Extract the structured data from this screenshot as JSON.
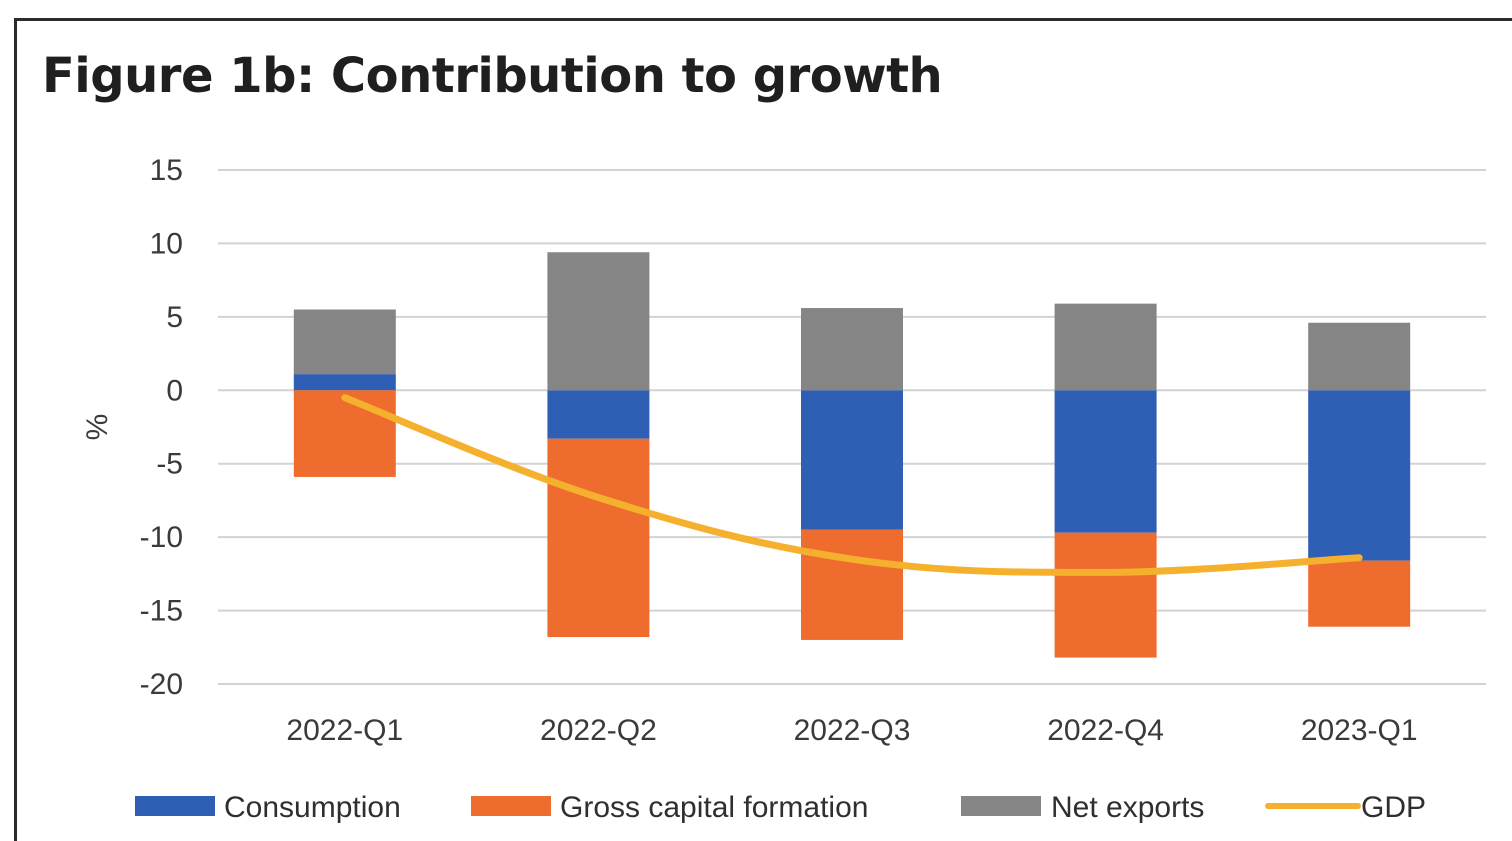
{
  "chart_data": {
    "type": "bar",
    "stacked": true,
    "title": "Figure 1b: Contribution to growth",
    "ylabel": "%",
    "xlabel": "",
    "ylim": [
      -20,
      15
    ],
    "yticks": [
      15,
      10,
      5,
      0,
      -5,
      -10,
      -15,
      -20
    ],
    "grid": true,
    "legend_position": "bottom",
    "categories": [
      "2022-Q1",
      "2022-Q2",
      "2022-Q3",
      "2022-Q4",
      "2023-Q1"
    ],
    "series": [
      {
        "name": "Consumption",
        "color": "#2e5fb5",
        "values": [
          1.1,
          -3.3,
          -9.5,
          -9.7,
          -11.6
        ]
      },
      {
        "name": "Gross capital formation",
        "color": "#ee6c2d",
        "values": [
          -5.9,
          -13.5,
          -7.5,
          -8.5,
          -4.5
        ]
      },
      {
        "name": "Net exports",
        "color": "#858585",
        "values": [
          4.4,
          9.4,
          5.6,
          5.9,
          4.6
        ]
      }
    ],
    "line_series": {
      "name": "GDP",
      "color": "#f5b12e",
      "values": [
        -0.5,
        -7.3,
        -11.5,
        -12.4,
        -11.4
      ]
    }
  }
}
